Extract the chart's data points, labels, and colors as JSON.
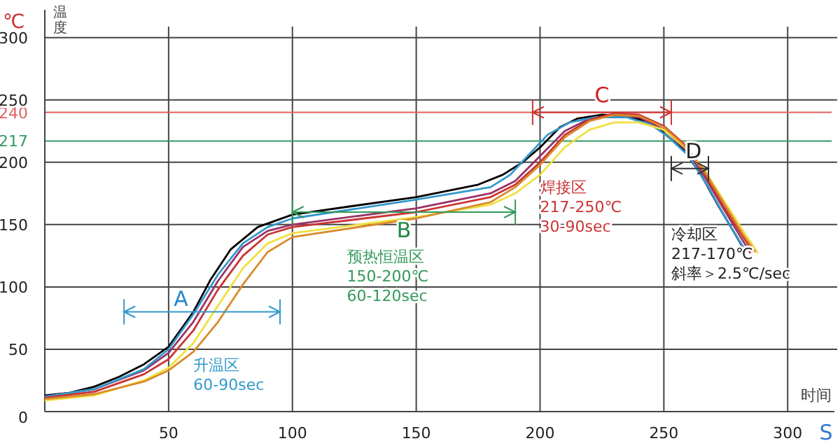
{
  "chart_data": {
    "type": "line",
    "xlabel": "时间",
    "ylabel": "温度",
    "xlim": [
      0,
      320
    ],
    "ylim": [
      0,
      320
    ],
    "xticks": [
      50,
      100,
      150,
      200,
      250,
      300
    ],
    "yticks": [
      0,
      50,
      100,
      150,
      200,
      250,
      300
    ],
    "grid": true,
    "marker": "none",
    "line_style": "solid",
    "series": [
      {
        "color": "#000000",
        "x": [
          0,
          10,
          20,
          30,
          40,
          50,
          60,
          67,
          75,
          86,
          100,
          125,
          150,
          175,
          185,
          193,
          200,
          208,
          215,
          225,
          235,
          245,
          252,
          258,
          265,
          272,
          278,
          283
        ],
        "values": [
          13,
          15,
          20,
          28,
          38,
          52,
          80,
          106,
          130,
          148,
          158,
          165,
          172,
          182,
          190,
          200,
          212,
          228,
          235,
          238,
          237,
          232,
          220,
          210,
          190,
          165,
          145,
          128
        ]
      },
      {
        "color": "#993366",
        "x": [
          0,
          20,
          40,
          50,
          60,
          70,
          80,
          90,
          100,
          150,
          180,
          190,
          200,
          210,
          220,
          230,
          240,
          250,
          258,
          266,
          274,
          281,
          285
        ],
        "values": [
          12,
          18,
          33,
          47,
          72,
          105,
          132,
          145,
          150,
          163,
          175,
          185,
          205,
          225,
          235,
          238,
          236,
          226,
          212,
          190,
          163,
          140,
          127
        ]
      },
      {
        "color": "#3399cc",
        "x": [
          0,
          20,
          40,
          50,
          60,
          70,
          80,
          90,
          100,
          150,
          180,
          188,
          195,
          203,
          212,
          222,
          235,
          245,
          252,
          260,
          268,
          275,
          282
        ],
        "values": [
          12,
          18,
          34,
          50,
          78,
          110,
          135,
          148,
          155,
          170,
          180,
          190,
          205,
          222,
          232,
          236,
          236,
          230,
          220,
          205,
          180,
          155,
          132
        ]
      },
      {
        "color": "#cc3333",
        "x": [
          0,
          20,
          40,
          50,
          60,
          70,
          80,
          90,
          100,
          150,
          180,
          190,
          200,
          210,
          220,
          230,
          240,
          250,
          258,
          266,
          274,
          282,
          286
        ],
        "values": [
          11,
          16,
          30,
          42,
          65,
          98,
          125,
          142,
          148,
          160,
          172,
          182,
          200,
          222,
          234,
          239,
          238,
          229,
          215,
          193,
          165,
          140,
          128
        ]
      },
      {
        "color": "#f0e040",
        "x": [
          0,
          20,
          40,
          50,
          60,
          70,
          80,
          90,
          100,
          150,
          180,
          190,
          200,
          210,
          220,
          230,
          240,
          250,
          258,
          266,
          274,
          282,
          288
        ],
        "values": [
          9,
          13,
          25,
          35,
          55,
          85,
          115,
          135,
          143,
          156,
          166,
          175,
          190,
          212,
          226,
          232,
          232,
          226,
          213,
          195,
          170,
          145,
          127
        ]
      },
      {
        "color": "#d98a2b",
        "x": [
          0,
          20,
          40,
          50,
          60,
          70,
          80,
          90,
          100,
          150,
          180,
          190,
          200,
          210,
          220,
          230,
          240,
          250,
          258,
          266,
          274,
          282,
          287
        ],
        "values": [
          10,
          14,
          24,
          33,
          48,
          72,
          102,
          128,
          140,
          155,
          168,
          180,
          198,
          220,
          233,
          238,
          237,
          228,
          214,
          194,
          168,
          142,
          128
        ]
      }
    ],
    "ref_lines": [
      {
        "axis": "y",
        "value": 240,
        "label": "240",
        "color": "#e06060"
      },
      {
        "axis": "y",
        "value": 217,
        "label": "217",
        "color": "#339966"
      }
    ],
    "annotations": [
      "℃",
      "S",
      "升温区\n60-90sec",
      "预热恒温区\n150-200℃\n60-120sec",
      "焊接区\n217-250℃\n30-90sec",
      "冷却区\n217-170℃\n斜率＞2.5℃/sec",
      "A",
      "B",
      "C",
      "D"
    ]
  }
}
